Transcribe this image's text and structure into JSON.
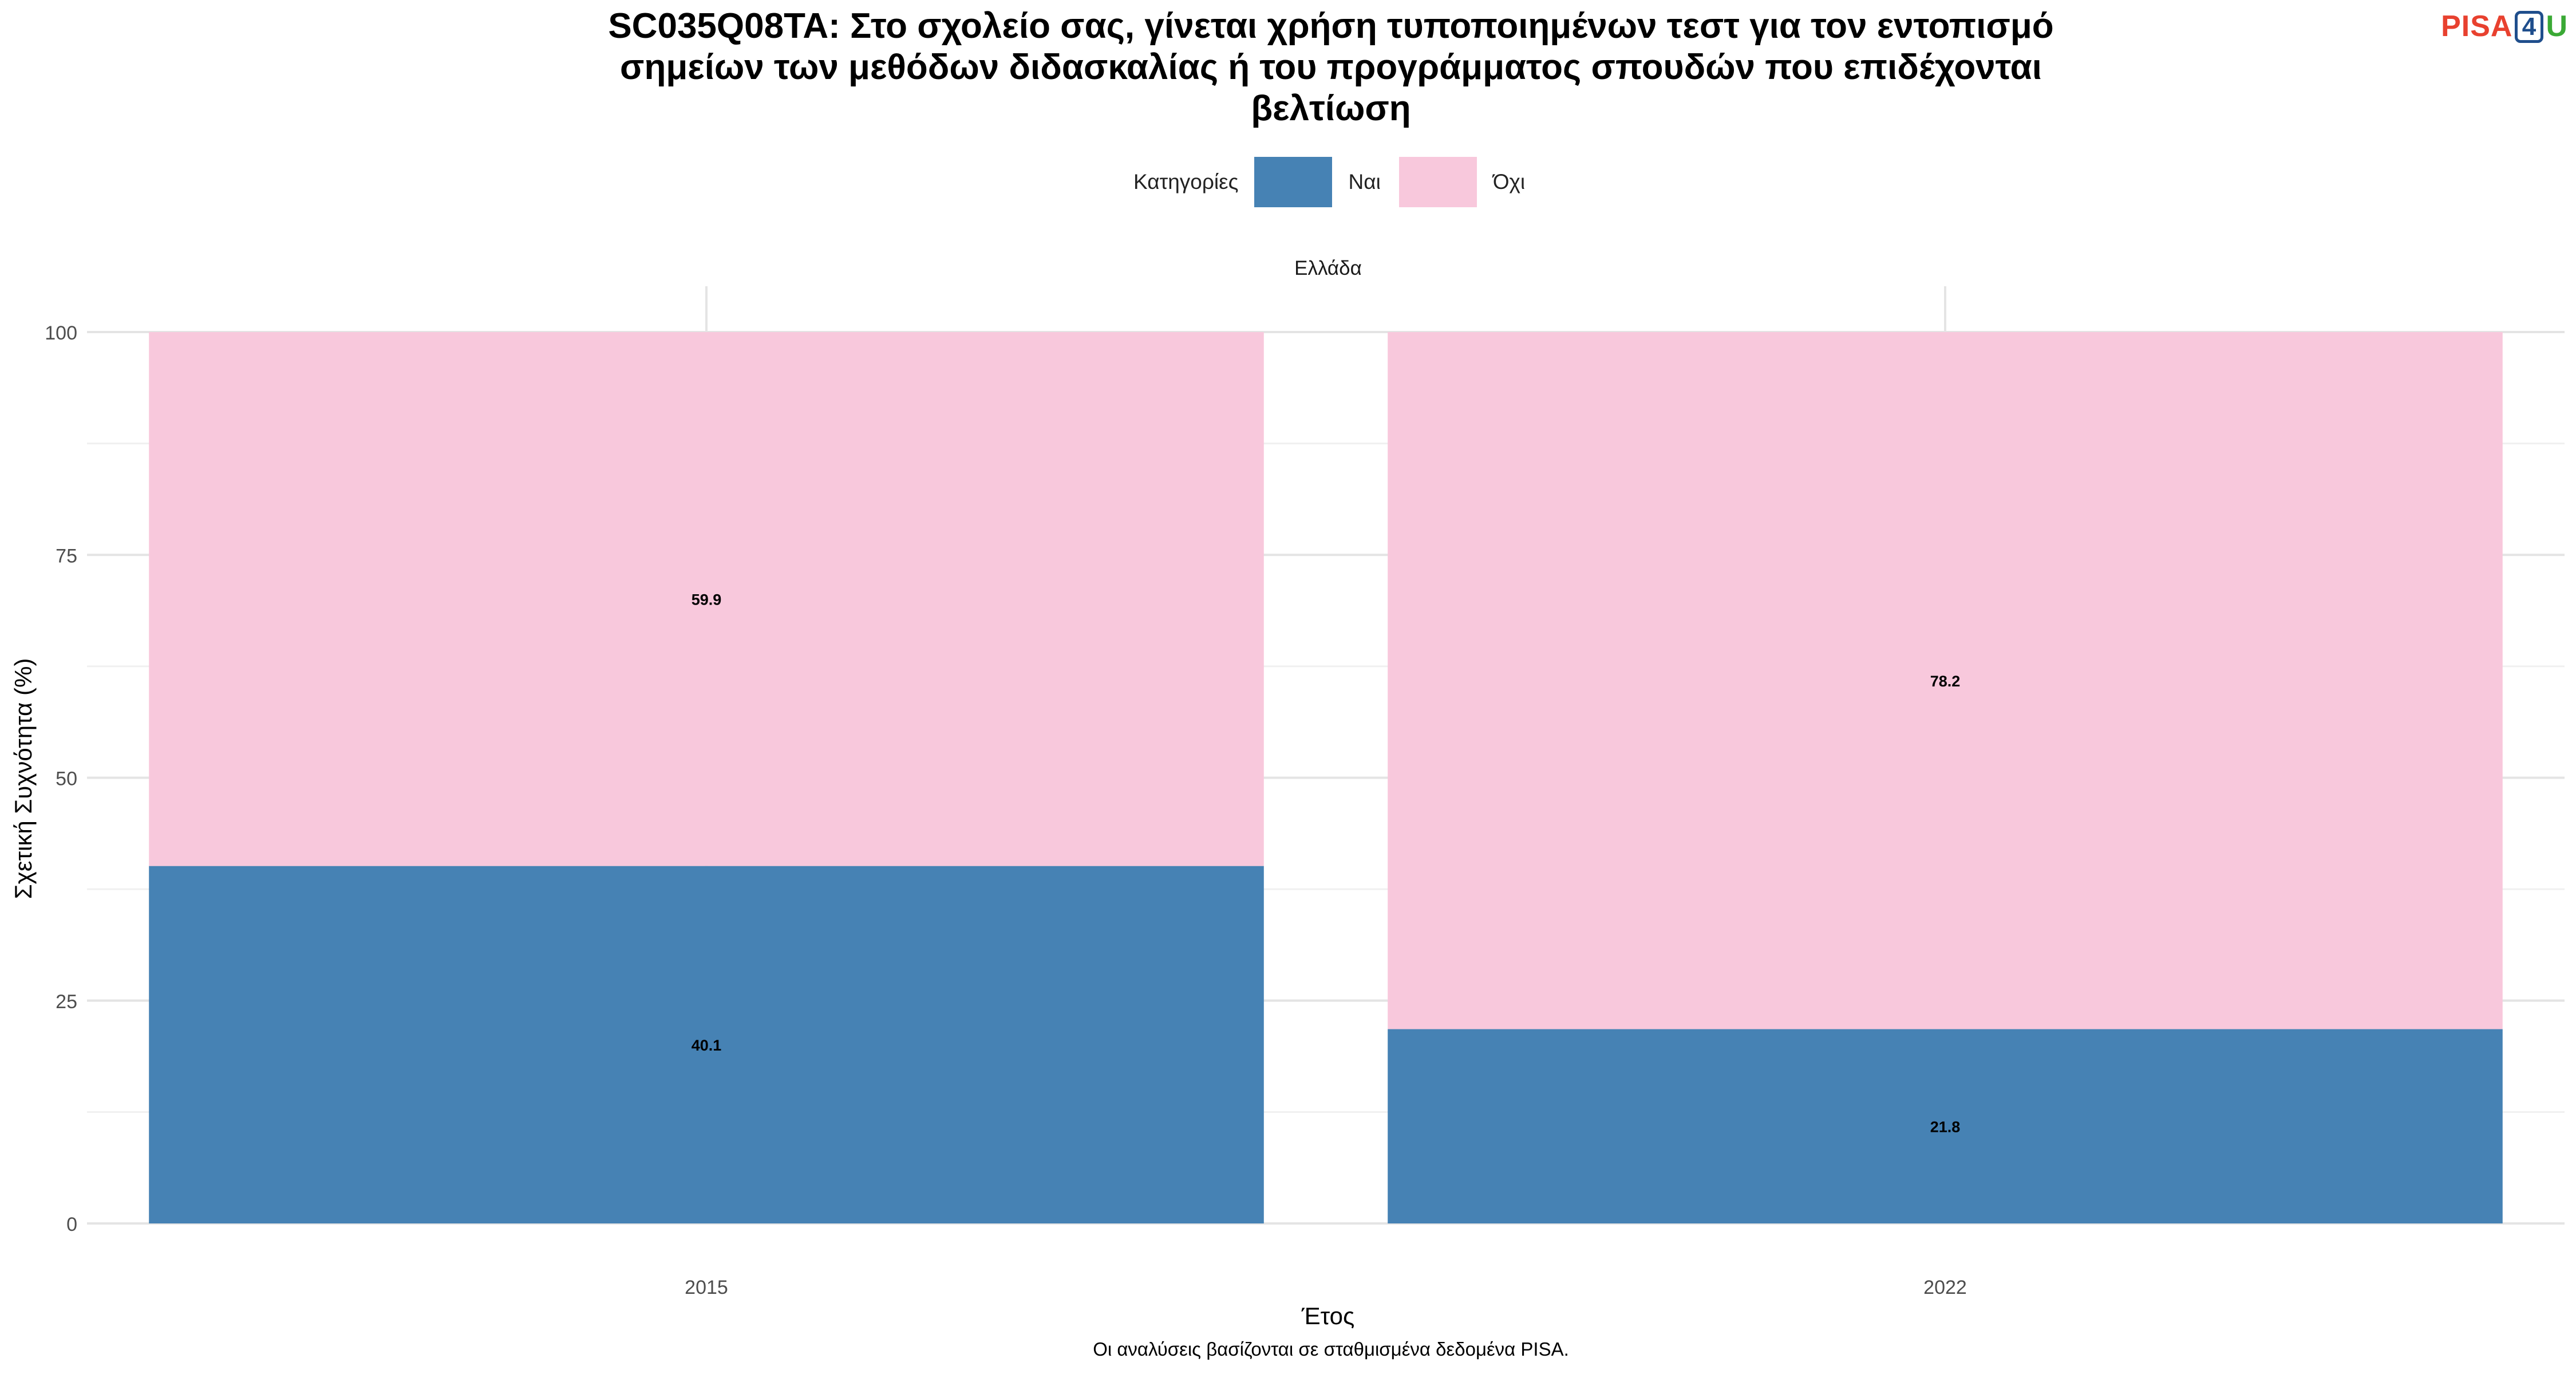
{
  "chart_data": {
    "type": "bar",
    "stacked": true,
    "title_lines": [
      "SC035Q08TA: Στο σχολείο σας, γίνεται χρήση τυποποιημένων τεστ για τον εντοπισμό",
      "σημείων των μεθόδων διδασκαλίας ή του προγράμματος σπουδών που επιδέχονται",
      "βελτίωση"
    ],
    "facet_label": "Ελλάδα",
    "xlabel": "Έτος",
    "ylabel": "Σχετική Συχνότητα (%)",
    "ylim": [
      0,
      100
    ],
    "yticks": [
      0,
      25,
      50,
      75,
      100
    ],
    "categories": [
      "2015",
      "2022"
    ],
    "legend_title": "Κατηγορίες",
    "legend_position": "top",
    "grid": true,
    "series": [
      {
        "name": "Ναι",
        "color": "#4682b4",
        "values": [
          40.1,
          21.8
        ]
      },
      {
        "name": "Όχι",
        "color": "#f8c8dc",
        "values": [
          59.9,
          78.2
        ]
      }
    ],
    "data_label_format": "one-decimal",
    "footnote": "Οι αναλύσεις βασίζονται σε σταθμισμένα δεδομένα PISA."
  },
  "logo": {
    "part1": "PISA",
    "part2": "4",
    "part3": "U"
  }
}
